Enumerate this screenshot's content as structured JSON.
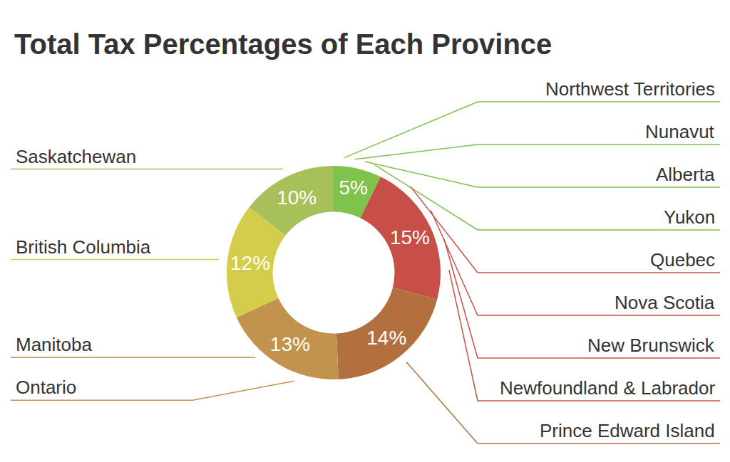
{
  "chart_data": {
    "type": "pie",
    "title": "Total Tax Percentages of Each Province",
    "values": [
      5,
      15,
      14,
      13,
      12,
      10
    ],
    "value_labels": [
      "5%",
      "15%",
      "14%",
      "13%",
      "12%",
      "10%"
    ],
    "jurisdictions": [
      [
        "Northwest Territories",
        "Nunavut",
        "Alberta",
        "Yukon"
      ],
      [
        "Quebec",
        "Nova Scotia",
        "New Brunswick",
        "Newfoundland & Labrador"
      ],
      [
        "Prince Edward Island"
      ],
      [
        "Ontario",
        "Manitoba"
      ],
      [
        "British Columbia"
      ],
      [
        "Saskatchewan"
      ]
    ],
    "colors": [
      "#7fc24c",
      "#c84f48",
      "#b3703f",
      "#c1934c",
      "#d4cd4c",
      "#a8c05a"
    ],
    "data_labels": true
  }
}
